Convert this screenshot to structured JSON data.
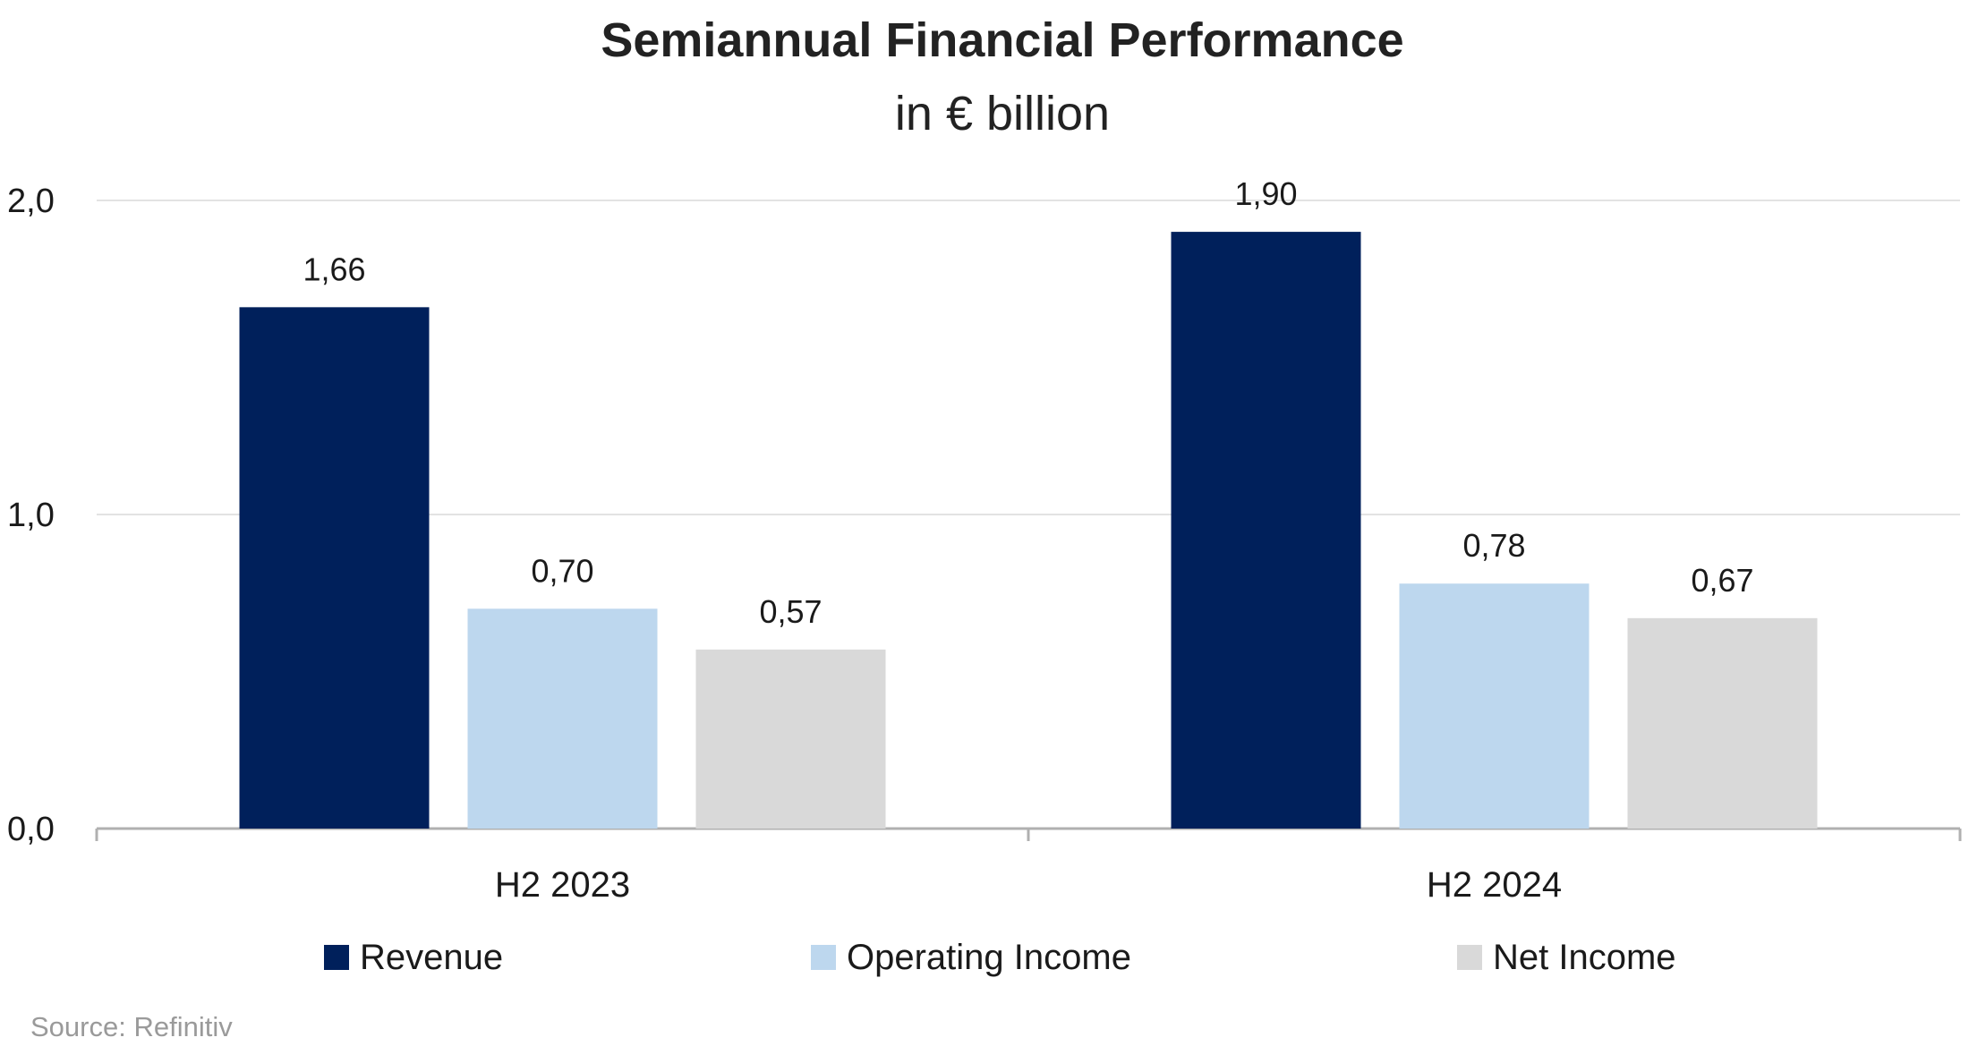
{
  "chart_data": {
    "type": "bar",
    "title": "Semiannual Financial Performance",
    "subtitle": "in € billion",
    "categories": [
      "H2 2023",
      "H2 2024"
    ],
    "series": [
      {
        "name": "Revenue",
        "values": [
          1.66,
          1.9
        ],
        "labels": [
          "1,66",
          "1,90"
        ],
        "color": "#00205b"
      },
      {
        "name": "Operating Income",
        "values": [
          0.7,
          0.78
        ],
        "labels": [
          "0,70",
          "0,78"
        ],
        "color": "#bdd7ee"
      },
      {
        "name": "Net Income",
        "values": [
          0.57,
          0.67
        ],
        "labels": [
          "0,57",
          "0,67"
        ],
        "color": "#d9d9d9"
      }
    ],
    "y_ticks": [
      0.0,
      1.0,
      2.0
    ],
    "y_tick_labels": [
      "0,0",
      "1,0",
      "2,0"
    ],
    "ylim": [
      0,
      2.0
    ],
    "grid": true,
    "legend_position": "bottom",
    "source": "Source: Refinitiv"
  }
}
